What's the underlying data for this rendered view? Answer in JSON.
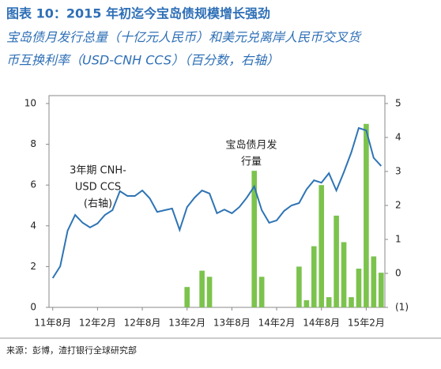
{
  "chart_data": {
    "type": "combo",
    "title": "图表 10：2015 年初迄今宝岛债规模增长强劲",
    "subtitle": [
      "宝岛债月发行总量（十亿元人民币）和美元兑离岸人民币交叉货",
      "币互换利率（USD-CNH CCS）（百分数，右轴）"
    ],
    "annotations": [
      {
        "lines": [
          "3年期 CNH-",
          "USD CCS",
          "(右轴)"
        ]
      },
      {
        "lines": [
          "宝岛债月发",
          "行量"
        ]
      }
    ],
    "source": "来源：彭博，渣打银行全球研究部",
    "categories": [
      "11年8月",
      null,
      null,
      null,
      null,
      null,
      "12年2月",
      null,
      null,
      null,
      null,
      null,
      "12年8月",
      null,
      null,
      null,
      null,
      null,
      "13年2月",
      null,
      null,
      null,
      null,
      null,
      "13年8月",
      null,
      null,
      null,
      null,
      null,
      "14年2月",
      null,
      null,
      null,
      null,
      null,
      "14年8月",
      null,
      null,
      null,
      null,
      null,
      "15年2月",
      null,
      null
    ],
    "ylim": [
      0,
      10
    ],
    "yticks": [
      0,
      2,
      4,
      6,
      8,
      10
    ],
    "y2lim": [
      -1,
      5
    ],
    "y2ticks": [
      {
        "value": -1,
        "label": "(1)"
      },
      0,
      1,
      2,
      3,
      4,
      5
    ],
    "series": [
      {
        "type": "bar",
        "color": "#7cc34d",
        "values": [
          null,
          null,
          null,
          null,
          null,
          null,
          null,
          null,
          null,
          null,
          null,
          null,
          null,
          null,
          null,
          null,
          null,
          null,
          1.0,
          null,
          1.8,
          1.5,
          null,
          null,
          null,
          null,
          null,
          6.7,
          1.5,
          null,
          null,
          null,
          null,
          2.0,
          0.35,
          3.0,
          6.0,
          0.5,
          4.5,
          3.2,
          0.5,
          1.9,
          9.0,
          2.5,
          1.7
        ]
      },
      {
        "type": "line",
        "axis": "y2",
        "color": "#2e74b5",
        "values": [
          -0.14,
          0.21,
          1.26,
          1.72,
          1.49,
          1.35,
          1.47,
          1.72,
          1.86,
          2.42,
          2.28,
          2.28,
          2.44,
          2.21,
          1.81,
          1.86,
          1.91,
          1.28,
          1.95,
          2.23,
          2.44,
          2.35,
          1.77,
          1.88,
          1.77,
          1.95,
          2.23,
          2.56,
          1.86,
          1.49,
          1.56,
          1.84,
          2.0,
          2.07,
          2.47,
          2.74,
          2.67,
          2.95,
          2.44,
          2.98,
          3.56,
          4.28,
          4.21,
          3.4,
          3.16
        ]
      }
    ]
  }
}
